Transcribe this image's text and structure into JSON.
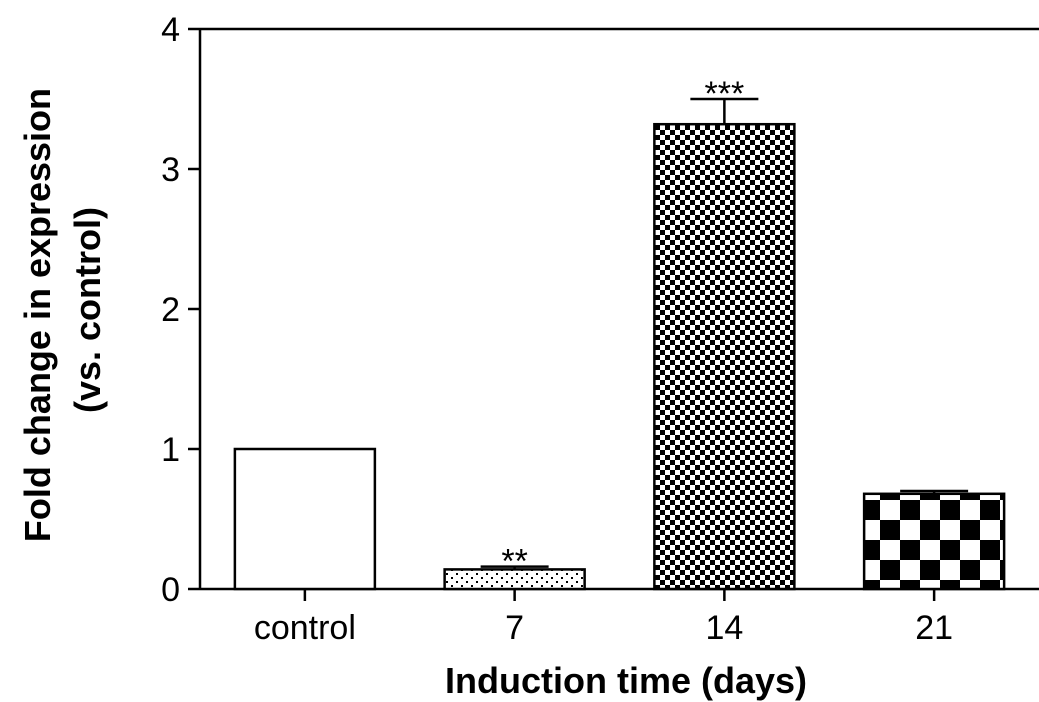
{
  "chart_data": {
    "type": "bar",
    "categories": [
      "control",
      "7",
      "14",
      "21"
    ],
    "values": [
      1.0,
      0.14,
      3.32,
      0.68
    ],
    "errors": [
      0,
      0.02,
      0.18,
      0.02
    ],
    "significance": [
      "",
      "**",
      "***",
      ""
    ],
    "fills": [
      "none",
      "dots",
      "checker-fine",
      "checker-coarse"
    ],
    "xlabel": "Induction time (days)",
    "ylabel_lines": [
      "Fold change in expression",
      "(vs. control)"
    ],
    "ylim": [
      0,
      4
    ],
    "yticks": [
      0,
      1,
      2,
      3,
      4
    ],
    "grid": false,
    "colors": {
      "ink": "#000000",
      "background": "#ffffff"
    }
  }
}
